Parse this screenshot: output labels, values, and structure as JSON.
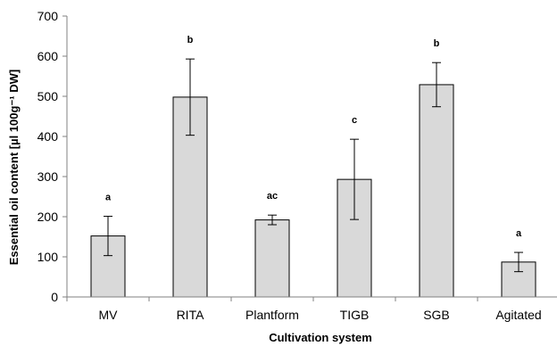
{
  "chart_data": {
    "type": "bar",
    "title": "",
    "xlabel": "Cultivation system",
    "ylabel": "Essential oil content [µl 100g⁻¹ DW]",
    "ylim": [
      0,
      700
    ],
    "yticks": [
      0,
      100,
      200,
      300,
      400,
      500,
      600,
      700
    ],
    "grid": false,
    "legend": "none",
    "categories": [
      "MV",
      "RITA",
      "Plantform",
      "TIGB",
      "SGB",
      "Agitated"
    ],
    "values": [
      152,
      498,
      192,
      293,
      529,
      87
    ],
    "error": [
      49,
      95,
      12,
      100,
      55,
      24
    ],
    "significance_labels": [
      "a",
      "b",
      "ac",
      "c",
      "b",
      "a"
    ],
    "bar_color": "#d9d9d9",
    "bar_edge_color": "#000000"
  }
}
